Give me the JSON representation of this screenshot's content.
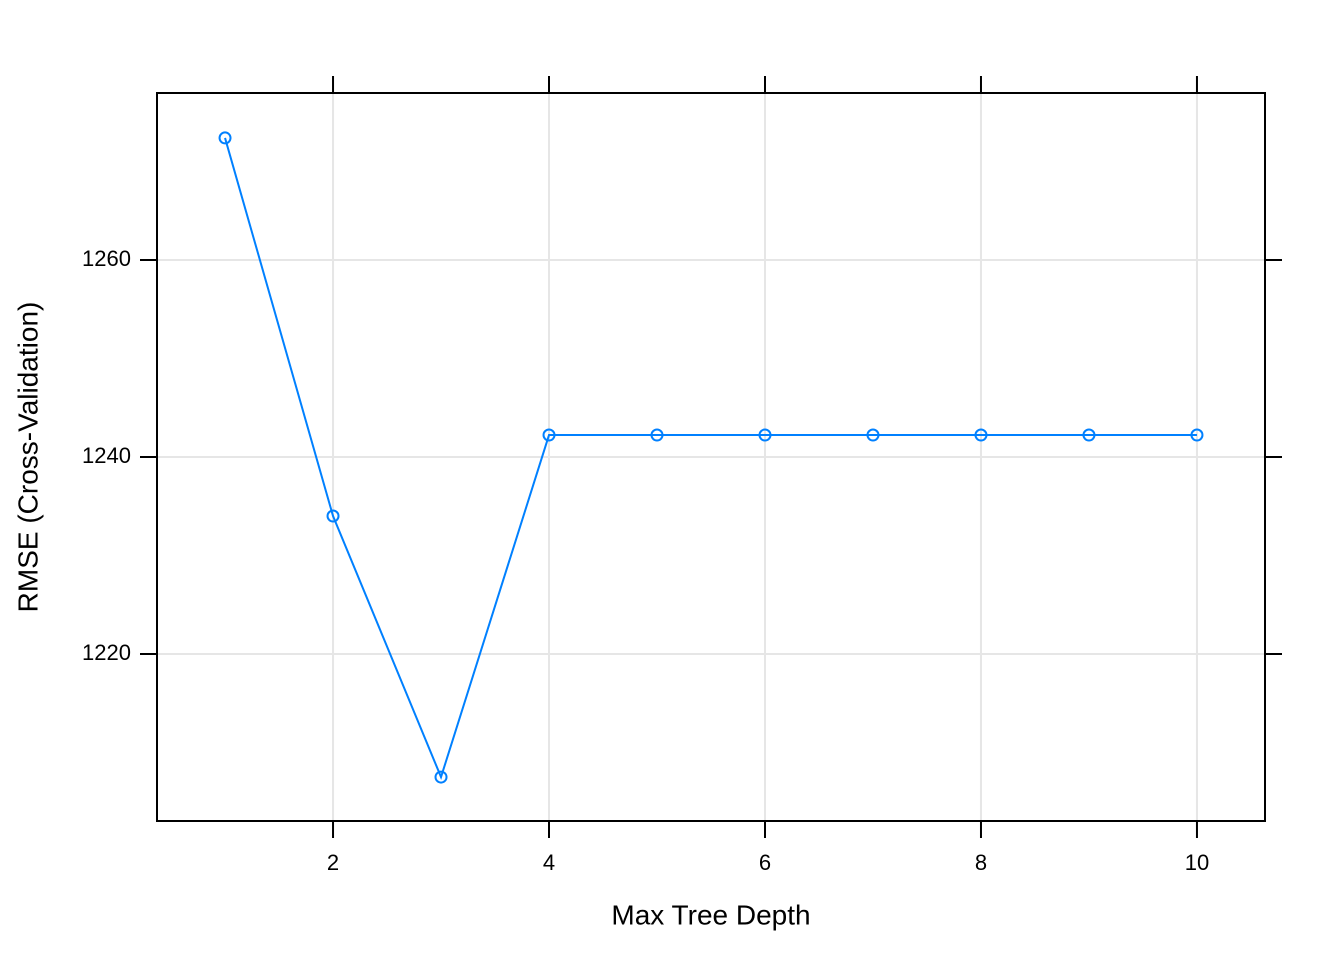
{
  "chart_data": {
    "type": "line",
    "xlabel": "Max Tree Depth",
    "ylabel": "RMSE (Cross-Validation)",
    "x": [
      1,
      2,
      3,
      4,
      5,
      6,
      7,
      8,
      9,
      10
    ],
    "values": [
      1272.39,
      1234.01,
      1207.51,
      1242.23,
      1242.23,
      1242.23,
      1242.23,
      1242.23,
      1242.23,
      1242.23
    ],
    "color": "#0080ff",
    "xlim": [
      0.37,
      10.63
    ],
    "xticks": [
      2,
      4,
      6,
      8,
      10
    ],
    "ylim": [
      1203.05,
      1276.95
    ],
    "yticks": [
      1220,
      1240,
      1260
    ],
    "grid": true
  }
}
